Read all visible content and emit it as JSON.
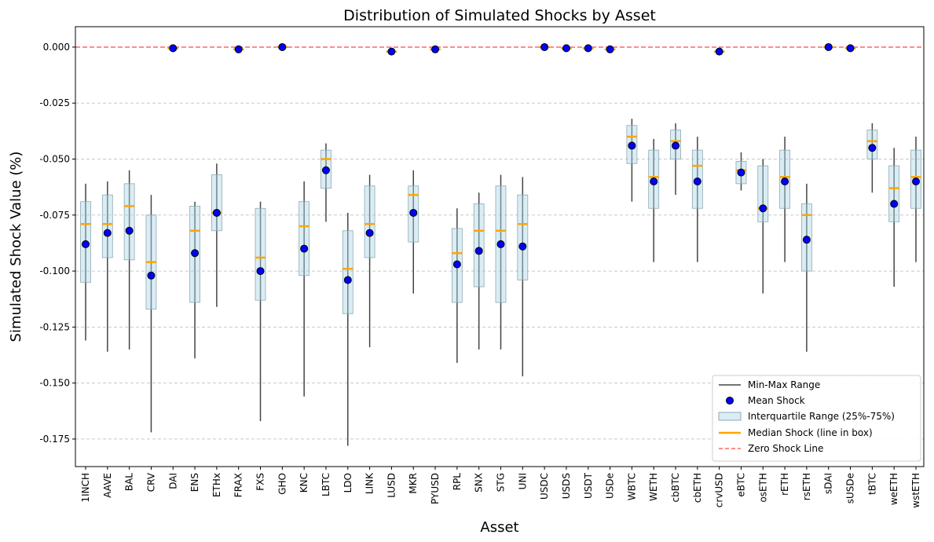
{
  "chart_data": {
    "type": "box",
    "title": "Distribution of Simulated Shocks by Asset",
    "xlabel": "Asset",
    "ylabel": "Simulated Shock Value (%)",
    "ylim": [
      -0.1873,
      0.0091
    ],
    "yticks": [
      0.0,
      -0.025,
      -0.05,
      -0.075,
      -0.1,
      -0.125,
      -0.15,
      -0.175
    ],
    "ytick_labels": [
      "0.000",
      "-0.025",
      "-0.050",
      "-0.075",
      "-0.100",
      "-0.125",
      "-0.150",
      "-0.175"
    ],
    "grid": "y-dashed",
    "legend_position": "bottom-right",
    "legend": [
      "Min-Max Range",
      "Mean Shock",
      "Interquartile Range (25%-75%)",
      "Median Shock (line in box)",
      "Zero Shock Line"
    ],
    "colors": {
      "range": "#444444",
      "mean": "#0000ff",
      "iqr_fill": "#add8e6",
      "median": "#ffa500",
      "zero": "#ff6666"
    },
    "categories": [
      "1INCH",
      "AAVE",
      "BAL",
      "CRV",
      "DAI",
      "ENS",
      "ETHx",
      "FRAX",
      "FXS",
      "GHO",
      "KNC",
      "LBTC",
      "LDO",
      "LINK",
      "LUSD",
      "MKR",
      "PYUSD",
      "RPL",
      "SNX",
      "STG",
      "UNI",
      "USDC",
      "USDS",
      "USDT",
      "USDe",
      "WBTC",
      "WETH",
      "cbBTC",
      "cbETH",
      "crvUSD",
      "eBTC",
      "osETH",
      "rETH",
      "rsETH",
      "sDAI",
      "sUSDe",
      "tBTC",
      "weETH",
      "wstETH"
    ],
    "min": [
      -0.131,
      -0.136,
      -0.135,
      -0.172,
      -0.001,
      -0.139,
      -0.116,
      -0.0015,
      -0.167,
      -0.0003,
      -0.156,
      -0.078,
      -0.178,
      -0.134,
      -0.0025,
      -0.11,
      -0.0015,
      -0.141,
      -0.135,
      -0.135,
      -0.147,
      -0.0003,
      -0.001,
      -0.001,
      -0.0015,
      -0.069,
      -0.096,
      -0.066,
      -0.096,
      -0.0025,
      -0.064,
      -0.11,
      -0.096,
      -0.136,
      -0.0003,
      -0.001,
      -0.065,
      -0.107,
      -0.096
    ],
    "q1": [
      -0.105,
      -0.094,
      -0.095,
      -0.117,
      -0.0008,
      -0.114,
      -0.082,
      -0.0012,
      -0.113,
      -0.0002,
      -0.102,
      -0.063,
      -0.119,
      -0.094,
      -0.0022,
      -0.087,
      -0.0012,
      -0.114,
      -0.107,
      -0.114,
      -0.104,
      -0.0002,
      -0.0008,
      -0.0008,
      -0.0012,
      -0.052,
      -0.072,
      -0.05,
      -0.072,
      -0.0022,
      -0.061,
      -0.078,
      -0.072,
      -0.1,
      -0.0002,
      -0.0008,
      -0.05,
      -0.078,
      -0.072
    ],
    "median": [
      -0.079,
      -0.079,
      -0.071,
      -0.096,
      -0.0005,
      -0.082,
      -0.074,
      -0.001,
      -0.094,
      0.0,
      -0.08,
      -0.05,
      -0.099,
      -0.079,
      -0.002,
      -0.066,
      -0.001,
      -0.092,
      -0.082,
      -0.082,
      -0.079,
      0.0,
      -0.0005,
      -0.0005,
      -0.001,
      -0.04,
      -0.058,
      -0.042,
      -0.053,
      -0.002,
      -0.055,
      -0.072,
      -0.058,
      -0.075,
      0.0,
      -0.0005,
      -0.042,
      -0.063,
      -0.058
    ],
    "q3": [
      -0.069,
      -0.066,
      -0.061,
      -0.075,
      -0.0002,
      -0.071,
      -0.057,
      -0.0008,
      -0.072,
      0.0,
      -0.069,
      -0.046,
      -0.082,
      -0.062,
      -0.0018,
      -0.062,
      -0.0008,
      -0.081,
      -0.07,
      -0.062,
      -0.066,
      0.0,
      -0.0002,
      -0.0002,
      -0.0008,
      -0.035,
      -0.046,
      -0.037,
      -0.046,
      -0.0018,
      -0.051,
      -0.053,
      -0.046,
      -0.07,
      0.0,
      -0.0002,
      -0.037,
      -0.053,
      -0.046
    ],
    "max": [
      -0.061,
      -0.06,
      -0.055,
      -0.066,
      0.0,
      -0.069,
      -0.052,
      -0.0005,
      -0.069,
      0.0,
      -0.06,
      -0.043,
      -0.074,
      -0.057,
      -0.0015,
      -0.055,
      -0.0005,
      -0.072,
      -0.065,
      -0.057,
      -0.058,
      0.0,
      0.0,
      0.0,
      -0.0005,
      -0.032,
      -0.041,
      -0.034,
      -0.04,
      -0.0015,
      -0.047,
      -0.05,
      -0.04,
      -0.061,
      0.0,
      0.0,
      -0.034,
      -0.045,
      -0.04
    ],
    "mean": [
      -0.088,
      -0.083,
      -0.082,
      -0.102,
      -0.0005,
      -0.092,
      -0.074,
      -0.001,
      -0.1,
      0.0,
      -0.09,
      -0.055,
      -0.104,
      -0.083,
      -0.002,
      -0.074,
      -0.001,
      -0.097,
      -0.091,
      -0.088,
      -0.089,
      0.0,
      -0.0005,
      -0.0005,
      -0.001,
      -0.044,
      -0.06,
      -0.044,
      -0.06,
      -0.002,
      -0.056,
      -0.072,
      -0.06,
      -0.086,
      0.0,
      -0.0005,
      -0.045,
      -0.07,
      -0.06
    ]
  }
}
